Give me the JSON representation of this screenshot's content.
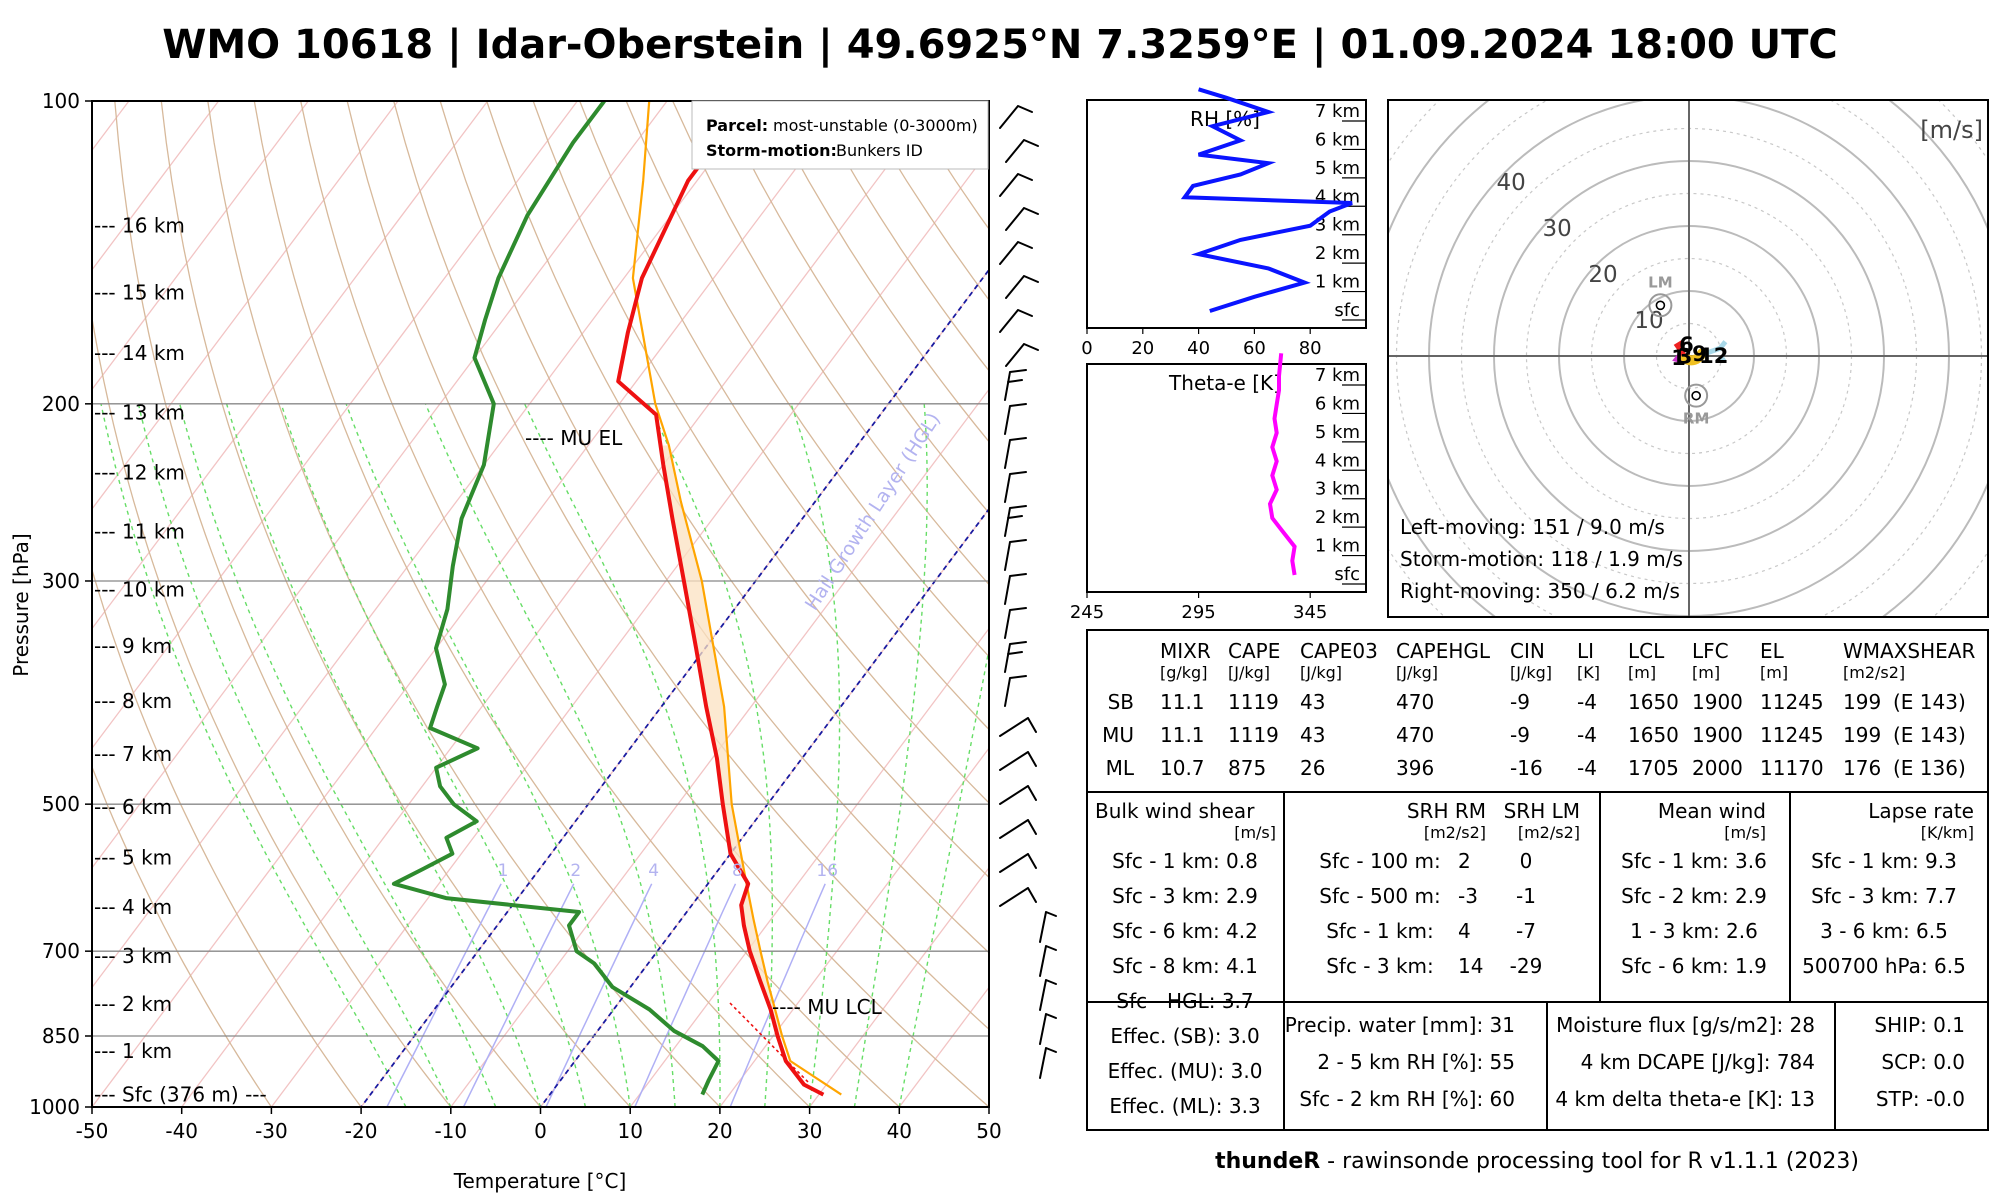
{
  "title": "WMO 10618 | Idar-Oberstein | 49.6925°N 7.3259°E | 01.09.2024 18:00 UTC",
  "footer": {
    "brand": "thundeR",
    "rest": " - rawinsonde processing tool for R v1.1.1 (2023)"
  },
  "chart_data": [
    {
      "type": "line",
      "name": "skew-t",
      "xlabel": "Temperature [°C]",
      "ylabel": "Pressure [hPa]",
      "xlim": [
        -50,
        50
      ],
      "ylim": [
        1000,
        100
      ],
      "x_ticks": [
        "-50",
        "-40",
        "-30",
        "-20",
        "-10",
        "0",
        "10",
        "20",
        "30",
        "40",
        "50"
      ],
      "p_ticks": [
        {
          "p": 100,
          "label": "100"
        },
        {
          "p": 200,
          "label": "200"
        },
        {
          "p": 300,
          "label": "300"
        },
        {
          "p": 500,
          "label": "500"
        },
        {
          "p": 700,
          "label": "700"
        },
        {
          "p": 850,
          "label": "850"
        },
        {
          "p": 1000,
          "label": "1000"
        }
      ],
      "height_labels": [
        {
          "p": 972,
          "label": "--- Sfc (376 m) ---"
        },
        {
          "p": 880,
          "label": "--- 1 km"
        },
        {
          "p": 790,
          "label": "--- 2 km"
        },
        {
          "p": 708,
          "label": "--- 3 km"
        },
        {
          "p": 633,
          "label": "--- 4 km"
        },
        {
          "p": 565,
          "label": "--- 5 km"
        },
        {
          "p": 503,
          "label": "--- 6 km"
        },
        {
          "p": 446,
          "label": "--- 7 km"
        },
        {
          "p": 395,
          "label": "--- 8 km"
        },
        {
          "p": 348,
          "label": "--- 9 km"
        },
        {
          "p": 306,
          "label": "--- 10 km"
        },
        {
          "p": 268,
          "label": "--- 11 km"
        },
        {
          "p": 234,
          "label": "--- 12 km"
        },
        {
          "p": 204,
          "label": "--- 13 km"
        },
        {
          "p": 178,
          "label": "--- 14 km"
        },
        {
          "p": 155,
          "label": "--- 15 km"
        },
        {
          "p": 133,
          "label": "--- 16 km"
        }
      ],
      "mixing_ratio_labels": [
        "1",
        "2",
        "4",
        "8",
        "16"
      ],
      "hgl_label": "Hail Growth Layer (HGL)",
      "annotations": {
        "mu_el": "---- MU EL",
        "mu_lcl": "---- MU LCL"
      },
      "legend": {
        "parcel_key": "Parcel:",
        "parcel_val": "most-unstable (0-3000m)",
        "sm_key": "Storm-motion:",
        "sm_val": "Bunkers ID"
      },
      "temperature": [
        [
          972,
          30.5
        ],
        [
          950,
          27.5
        ],
        [
          900,
          23.5
        ],
        [
          850,
          20.5
        ],
        [
          800,
          17.5
        ],
        [
          750,
          14
        ],
        [
          700,
          10.3
        ],
        [
          660,
          7.5
        ],
        [
          630,
          5.5
        ],
        [
          600,
          4.5
        ],
        [
          560,
          0
        ],
        [
          500,
          -5
        ],
        [
          450,
          -9.5
        ],
        [
          400,
          -15
        ],
        [
          350,
          -21
        ],
        [
          300,
          -28
        ],
        [
          260,
          -34.5
        ],
        [
          230,
          -40
        ],
        [
          205,
          -45
        ],
        [
          190,
          -52
        ],
        [
          170,
          -55
        ],
        [
          150,
          -58
        ],
        [
          120,
          -61
        ],
        [
          100,
          -61
        ]
      ],
      "dewpoint": [
        [
          972,
          17
        ],
        [
          940,
          16.5
        ],
        [
          900,
          16
        ],
        [
          870,
          13
        ],
        [
          840,
          8.5
        ],
        [
          800,
          4
        ],
        [
          760,
          -2
        ],
        [
          720,
          -6
        ],
        [
          700,
          -9
        ],
        [
          660,
          -12
        ],
        [
          640,
          -12
        ],
        [
          620,
          -28
        ],
        [
          600,
          -35
        ],
        [
          580,
          -33
        ],
        [
          560,
          -31
        ],
        [
          540,
          -33
        ],
        [
          520,
          -31
        ],
        [
          500,
          -35
        ],
        [
          480,
          -38
        ],
        [
          460,
          -40
        ],
        [
          440,
          -37
        ],
        [
          420,
          -44
        ],
        [
          400,
          -45
        ],
        [
          380,
          -46
        ],
        [
          350,
          -50
        ],
        [
          320,
          -52
        ],
        [
          290,
          -55
        ],
        [
          260,
          -58
        ],
        [
          230,
          -60
        ],
        [
          200,
          -64
        ],
        [
          180,
          -70
        ],
        [
          165,
          -72
        ],
        [
          150,
          -74
        ],
        [
          130,
          -76
        ],
        [
          110,
          -77
        ],
        [
          100,
          -77
        ]
      ],
      "parcel": [
        [
          972,
          32.5
        ],
        [
          900,
          24
        ],
        [
          850,
          21
        ],
        [
          800,
          18
        ],
        [
          750,
          14.8
        ],
        [
          700,
          11.5
        ],
        [
          650,
          8
        ],
        [
          600,
          4.3
        ],
        [
          500,
          -4
        ],
        [
          400,
          -13
        ],
        [
          300,
          -26
        ],
        [
          250,
          -35
        ],
        [
          220,
          -41
        ],
        [
          200,
          -46
        ],
        [
          150,
          -59
        ],
        [
          120,
          -66
        ],
        [
          100,
          -72
        ]
      ],
      "cape_pressure_range": [
        850,
        220
      ]
    },
    {
      "type": "line",
      "name": "relative-humidity-profile",
      "title": "RH [%]",
      "xlim": [
        0,
        100
      ],
      "x_ticks": [
        "0",
        "20",
        "40",
        "60",
        "80"
      ],
      "height_ticks": [
        "sfc",
        "1 km",
        "2 km",
        "3 km",
        "4 km",
        "5 km",
        "6 km",
        "7 km"
      ],
      "values": [
        [
          0,
          44
        ],
        [
          0.5,
          60
        ],
        [
          1,
          78
        ],
        [
          1.5,
          65
        ],
        [
          2,
          40
        ],
        [
          2.5,
          55
        ],
        [
          3,
          80
        ],
        [
          3.5,
          87
        ],
        [
          3.8,
          95
        ],
        [
          4,
          35
        ],
        [
          4.4,
          38
        ],
        [
          4.8,
          55
        ],
        [
          5.2,
          65
        ],
        [
          5.5,
          40
        ],
        [
          6,
          55
        ],
        [
          6.5,
          45
        ],
        [
          7,
          65
        ],
        [
          7.5,
          50
        ],
        [
          7.8,
          40
        ]
      ]
    },
    {
      "type": "line",
      "name": "theta-e-profile",
      "title": "Theta-e [K]",
      "xlim": [
        245,
        370
      ],
      "x_ticks": [
        "245",
        "295",
        "345"
      ],
      "height_ticks": [
        "sfc",
        "1 km",
        "2 km",
        "3 km",
        "4 km",
        "5 km",
        "6 km",
        "7 km"
      ],
      "values": [
        [
          0,
          338
        ],
        [
          0.5,
          337
        ],
        [
          1,
          338
        ],
        [
          1.5,
          333
        ],
        [
          2,
          328
        ],
        [
          2.5,
          327
        ],
        [
          3,
          330
        ],
        [
          3.5,
          328
        ],
        [
          4,
          330
        ],
        [
          4.5,
          328
        ],
        [
          5,
          330
        ],
        [
          5.5,
          329
        ],
        [
          6,
          330
        ],
        [
          6.5,
          331
        ],
        [
          7,
          331
        ],
        [
          7.8,
          332
        ]
      ]
    },
    {
      "type": "scatter",
      "name": "hodograph",
      "unit_label": "[m/s]",
      "ring_labels": [
        "10",
        "20",
        "30",
        "40"
      ],
      "points": [
        {
          "label": "1",
          "u": -1.6,
          "v": 0
        },
        {
          "label": "3",
          "u": -0.6,
          "v": 0.2
        },
        {
          "label": "6",
          "u": -0.4,
          "v": 2.0
        },
        {
          "label": "9",
          "u": 1.6,
          "v": 0.6
        },
        {
          "label": "12",
          "u": 3.8,
          "v": 0.3
        }
      ],
      "lm": {
        "label": "LM",
        "u": -4.4,
        "v": 7.8
      },
      "rm": {
        "label": "RM",
        "u": 1.1,
        "v": -6.1
      }
    }
  ],
  "hodo_text": [
    "Left-moving: 151 / 9.0 m/s",
    "Storm-motion: 118 / 1.9 m/s",
    "Right-moving: 350 / 6.2 m/s"
  ],
  "params": {
    "headers": [
      "MIXR",
      "CAPE",
      "CAPE03",
      "CAPEHGL",
      "CIN",
      "LI",
      "LCL",
      "LFC",
      "EL",
      "WMAXSHEAR"
    ],
    "units": [
      "[g/kg]",
      "[J/kg]",
      "[J/kg]",
      "[J/kg]",
      "[J/kg]",
      "[K]",
      "[m]",
      "[m]",
      "[m]",
      "[m2/s2]"
    ],
    "rows": [
      {
        "name": "SB",
        "vals": [
          "11.1",
          "1119",
          "43",
          "470",
          "-9",
          "-4",
          "1650",
          "1900",
          "11245",
          "199",
          "(E 143)"
        ]
      },
      {
        "name": "MU",
        "vals": [
          "11.1",
          "1119",
          "43",
          "470",
          "-9",
          "-4",
          "1650",
          "1900",
          "11245",
          "199",
          "(E 143)"
        ]
      },
      {
        "name": "ML",
        "vals": [
          "10.7",
          "875",
          "26",
          "396",
          "-16",
          "-4",
          "1705",
          "2000",
          "11170",
          "176",
          "(E 136)"
        ]
      }
    ]
  },
  "shear": {
    "title": "Bulk wind shear",
    "unit": "[m/s]",
    "rows": [
      "Sfc - 1 km: 0.8",
      "Sfc - 3 km: 2.9",
      "Sfc - 6 km: 4.2",
      "Sfc - 8 km: 4.1",
      "Sfc - HGL: 3.7",
      "Effec. (SB): 3.0",
      "Effec. (MU): 3.0",
      "Effec. (ML): 3.3"
    ]
  },
  "srh": {
    "h1": "SRH RM",
    "h2": "SRH LM",
    "u1": "[m2/s2]",
    "u2": "[m2/s2]",
    "rows": [
      {
        "l": "Sfc - 100 m:",
        "rm": "2",
        "lm": "0"
      },
      {
        "l": "Sfc - 500 m:",
        "rm": "-3",
        "lm": "-1"
      },
      {
        "l": "Sfc - 1 km:",
        "rm": "4",
        "lm": "-7"
      },
      {
        "l": "Sfc - 3 km:",
        "rm": "14",
        "lm": "-29"
      }
    ]
  },
  "meanwind": {
    "title": "Mean wind",
    "unit": "[m/s]",
    "rows": [
      "Sfc - 1 km: 3.6",
      "Sfc - 2 km: 2.9",
      "1 - 3 km: 2.6",
      "Sfc - 6 km: 1.9"
    ]
  },
  "lapse": {
    "title": "Lapse rate",
    "unit": "[K/km]",
    "rows": [
      "Sfc - 1 km: 9.3",
      "Sfc - 3 km: 7.7",
      "3 - 6 km: 6.5",
      "500700 hPa: 6.5"
    ]
  },
  "misc1": [
    "Precip. water [mm]: 31",
    "2 - 5 km RH [%]: 55",
    "Sfc - 2 km RH [%]: 60"
  ],
  "misc2": [
    "Moisture flux [g/s/m2]: 28",
    "4 km DCAPE [J/kg]: 784",
    "4 km delta theta-e [K]: 13"
  ],
  "misc3": [
    "SHIP: 0.1",
    "SCP: 0.0",
    "STP: -0.0"
  ]
}
